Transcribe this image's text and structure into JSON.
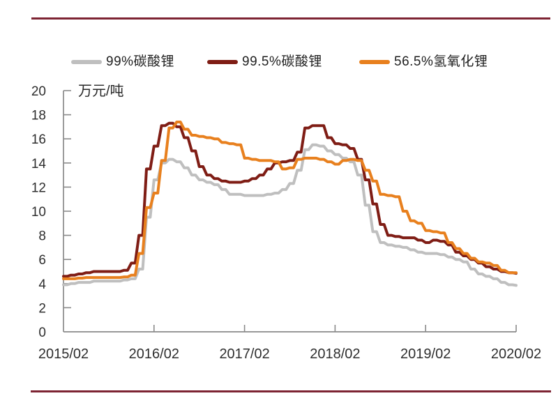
{
  "page": {
    "rule_color": "#7D2433",
    "axis_color": "#8a8a8a",
    "background": "#ffffff"
  },
  "chart_data": {
    "type": "line",
    "title": "",
    "unit_label": "万元/吨",
    "ylabel": "万元/吨",
    "xlabel": "",
    "ylim": [
      0,
      20
    ],
    "y_ticks": [
      0,
      2,
      4,
      6,
      8,
      10,
      12,
      14,
      16,
      18,
      20
    ],
    "x_tick_labels": [
      "2015/02",
      "2016/02",
      "2017/02",
      "2018/02",
      "2019/02",
      "2020/02"
    ],
    "x_start": "2015/02",
    "x_end": "2020/02",
    "x_interval": "monthly",
    "grid": false,
    "legend_position": "top",
    "series": [
      {
        "name": "99%碳酸锂",
        "color": "#BFBFBF",
        "values": [
          3.9,
          4.0,
          4.1,
          4.1,
          4.2,
          4.2,
          4.2,
          4.2,
          4.3,
          4.4,
          5.2,
          9.5,
          12.6,
          14.0,
          14.3,
          14.1,
          13.6,
          13.0,
          12.6,
          12.4,
          12.2,
          11.8,
          11.4,
          11.4,
          11.3,
          11.3,
          11.3,
          11.4,
          11.5,
          11.8,
          12.3,
          13.4,
          15.1,
          15.5,
          15.4,
          15.0,
          14.7,
          14.4,
          14.1,
          13.0,
          10.5,
          8.3,
          7.4,
          7.2,
          7.1,
          7.0,
          6.8,
          6.6,
          6.5,
          6.5,
          6.4,
          6.2,
          6.0,
          5.8,
          5.2,
          4.8,
          4.6,
          4.4,
          4.1,
          3.9,
          3.85
        ]
      },
      {
        "name": "99.5%碳酸锂",
        "color": "#7F1D15",
        "values": [
          4.6,
          4.7,
          4.8,
          4.9,
          5.0,
          5.0,
          5.0,
          5.0,
          5.1,
          5.7,
          8.0,
          13.5,
          15.4,
          17.1,
          17.3,
          17.0,
          16.1,
          15.0,
          13.7,
          13.0,
          12.7,
          12.5,
          12.4,
          12.4,
          12.5,
          12.7,
          13.0,
          13.5,
          14.0,
          14.1,
          14.2,
          14.9,
          16.9,
          17.1,
          17.1,
          16.1,
          15.6,
          15.5,
          15.2,
          14.3,
          12.6,
          10.6,
          8.9,
          8.0,
          7.9,
          7.8,
          7.8,
          7.6,
          7.4,
          7.6,
          7.5,
          7.2,
          6.6,
          6.3,
          6.0,
          5.7,
          5.4,
          5.2,
          5.0,
          4.9,
          4.85
        ]
      },
      {
        "name": "56.5%氢氧化锂",
        "color": "#E8801E",
        "values": [
          4.4,
          4.4,
          4.45,
          4.5,
          4.5,
          4.5,
          4.5,
          4.5,
          4.55,
          4.7,
          6.5,
          10.3,
          11.5,
          14.2,
          16.9,
          17.4,
          16.8,
          16.3,
          16.2,
          16.1,
          16.0,
          15.7,
          15.6,
          15.5,
          14.4,
          14.3,
          14.2,
          14.2,
          14.1,
          13.5,
          13.6,
          14.3,
          14.4,
          14.4,
          14.3,
          14.1,
          13.9,
          14.2,
          14.3,
          14.2,
          13.4,
          12.5,
          11.4,
          11.3,
          11.2,
          10.0,
          9.2,
          9.0,
          8.4,
          8.3,
          8.2,
          7.4,
          6.9,
          6.5,
          6.1,
          5.8,
          5.7,
          5.5,
          5.1,
          4.9,
          4.9
        ]
      }
    ]
  }
}
